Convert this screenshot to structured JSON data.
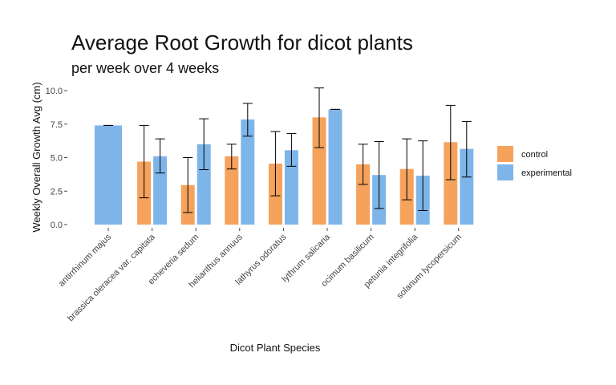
{
  "chart_data": {
    "type": "bar",
    "title": "Average Root Growth for dicot plants",
    "subtitle": "per week over 4 weeks",
    "xlabel": "Dicot Plant Species",
    "ylabel": "Weekly Overall Growth Avg (cm)",
    "ylim": [
      0,
      10.5
    ],
    "yticks": [
      "0.0",
      "2.5",
      "5.0",
      "7.5",
      "10.0"
    ],
    "grid": false,
    "legend_position": "right",
    "categories": [
      "antirrhinum majus",
      "brassica oleracea var. capitata",
      "echeveria sedum",
      "helianthus annuus",
      "lathyrus odoratus",
      "lythrum salicaria",
      "ocimum basilicum",
      "petunia integrifolia",
      "solanum lycopersicum"
    ],
    "series": [
      {
        "name": "control",
        "color": "#F5A25D",
        "values": [
          null,
          4.7,
          2.95,
          5.1,
          4.55,
          8.0,
          4.5,
          4.15,
          6.15
        ],
        "error_low": [
          null,
          2.0,
          0.9,
          4.15,
          2.15,
          5.75,
          3.0,
          1.85,
          3.35
        ],
        "error_high": [
          null,
          7.4,
          5.0,
          6.0,
          6.95,
          10.2,
          6.0,
          6.4,
          8.9
        ]
      },
      {
        "name": "experimental",
        "color": "#7EB5E9",
        "values": [
          7.4,
          5.1,
          6.0,
          7.85,
          5.55,
          8.6,
          3.7,
          3.65,
          5.65
        ],
        "error_low": [
          7.4,
          3.85,
          4.1,
          6.6,
          4.35,
          8.6,
          1.2,
          1.05,
          3.55
        ],
        "error_high": [
          7.4,
          6.4,
          7.9,
          9.05,
          6.8,
          8.6,
          6.2,
          6.25,
          7.7
        ]
      }
    ]
  }
}
